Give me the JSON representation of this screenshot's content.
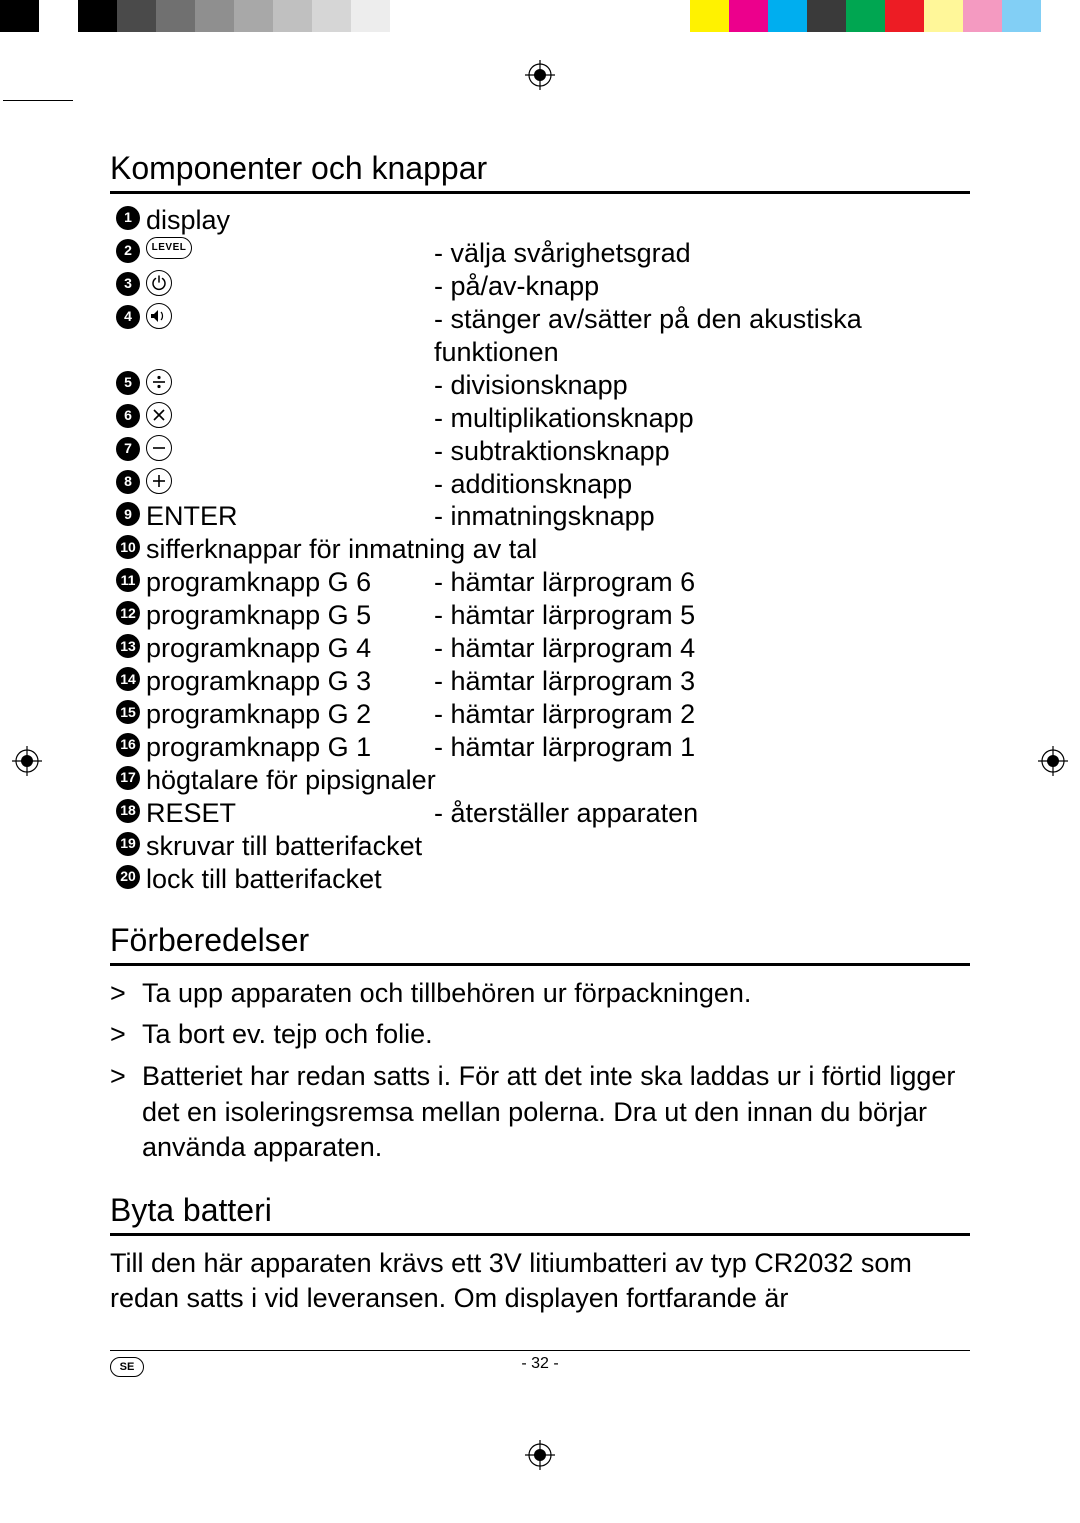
{
  "page_number_text": "- 32 -",
  "language_code": "SE",
  "colorbar": {
    "left": [
      "#000000",
      "#ffffff",
      "#000000",
      "#4a4a4a",
      "#707070",
      "#8f8f8f",
      "#a8a8a8",
      "#c0c0c0",
      "#d6d6d6",
      "#ededed"
    ],
    "right": [
      "#fff200",
      "#ec008c",
      "#00aeef",
      "#3a3a3a",
      "#00a651",
      "#ed1c24",
      "#fff799",
      "#f49ac1",
      "#82cff5",
      "#ffffff"
    ]
  },
  "sections": {
    "components_title": "Komponenter och knappar",
    "prep_title": "Förberedelser",
    "battery_title": "Byta batteri"
  },
  "components": [
    {
      "n": "1",
      "icon": null,
      "label": "display",
      "desc": ""
    },
    {
      "n": "2",
      "icon": "level-oval",
      "label": "",
      "desc": "- välja svårighetsgrad"
    },
    {
      "n": "3",
      "icon": "power-icon",
      "label": "",
      "desc": "- på/av-knapp"
    },
    {
      "n": "4",
      "icon": "sound-icon",
      "label": "",
      "desc": "- stänger av/sätter på den akustiska funktionen"
    },
    {
      "n": "5",
      "icon": "divide-icon",
      "label": "",
      "desc": "- divisionsknapp"
    },
    {
      "n": "6",
      "icon": "multiply-icon",
      "label": "",
      "desc": "- multiplikationsknapp"
    },
    {
      "n": "7",
      "icon": "minus-icon",
      "label": "",
      "desc": "- subtraktionsknapp"
    },
    {
      "n": "8",
      "icon": "plus-icon",
      "label": "",
      "desc": "- additionsknapp"
    },
    {
      "n": "9",
      "icon": null,
      "label": "ENTER",
      "desc": "- inmatningsknapp"
    },
    {
      "n": "10",
      "icon": null,
      "label": "sifferknappar för inmatning av tal",
      "desc": ""
    },
    {
      "n": "11",
      "icon": null,
      "label": "programknapp G 6",
      "desc": "- hämtar lärprogram 6"
    },
    {
      "n": "12",
      "icon": null,
      "label": "programknapp G 5",
      "desc": "- hämtar lärprogram 5"
    },
    {
      "n": "13",
      "icon": null,
      "label": "programknapp G 4",
      "desc": "- hämtar lärprogram 4"
    },
    {
      "n": "14",
      "icon": null,
      "label": "programknapp G 3",
      "desc": "- hämtar lärprogram 3"
    },
    {
      "n": "15",
      "icon": null,
      "label": "programknapp G 2",
      "desc": "- hämtar lärprogram 2"
    },
    {
      "n": "16",
      "icon": null,
      "label": "programknapp G 1",
      "desc": "- hämtar lärprogram 1"
    },
    {
      "n": "17",
      "icon": null,
      "label": "högtalare för pipsignaler",
      "desc": ""
    },
    {
      "n": "18",
      "icon": null,
      "label": "RESET",
      "desc": "- återställer apparaten"
    },
    {
      "n": "19",
      "icon": null,
      "label": "skruvar till batterifacket",
      "desc": ""
    },
    {
      "n": "20",
      "icon": null,
      "label": "lock till batterifacket",
      "desc": ""
    }
  ],
  "level_oval_text": "LEVEL",
  "prep_items": [
    "Ta upp apparaten och tillbehören ur förpackningen.",
    "Ta bort ev. tejp och folie.",
    "Batteriet har redan satts i. För att det inte ska laddas ur i förtid ligger det en isoleringsremsa mellan polerna. Dra ut den innan du börjar använda apparaten."
  ],
  "prep_bullet": ">",
  "battery_text": "Till den här apparaten krävs ett 3V litiumbatteri av typ CR2032 som redan satts i vid leveransen. Om displayen fortfarande är"
}
